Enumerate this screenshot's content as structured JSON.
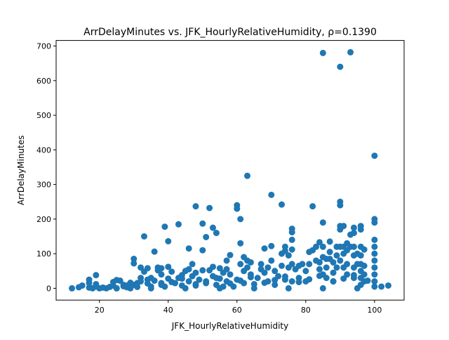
{
  "chart_data": {
    "type": "scatter",
    "title": "ArrDelayMinutes vs. JFK_HourlyRelativeHumidity, ρ=0.1390",
    "xlabel": "JFK_HourlyRelativeHumidity",
    "ylabel": "ArrDelayMinutes",
    "xlim": [
      7.4,
      108.6
    ],
    "ylim": [
      -34.1,
      716.1
    ],
    "xticks": [
      20,
      40,
      60,
      80,
      100
    ],
    "yticks": [
      0,
      100,
      200,
      300,
      400,
      500,
      600,
      700
    ],
    "grid": false,
    "legend": "none",
    "marker_color": "#1f77b4",
    "series": [
      {
        "points": [
          [
            12,
            0
          ],
          [
            14,
            3
          ],
          [
            15,
            8
          ],
          [
            17,
            2
          ],
          [
            17,
            25
          ],
          [
            17,
            15
          ],
          [
            18,
            0
          ],
          [
            19,
            5
          ],
          [
            19,
            12
          ],
          [
            19,
            38
          ],
          [
            20,
            0
          ],
          [
            21,
            2
          ],
          [
            22,
            0
          ],
          [
            23,
            4
          ],
          [
            24,
            8
          ],
          [
            24,
            18
          ],
          [
            25,
            0
          ],
          [
            25,
            24
          ],
          [
            26,
            22
          ],
          [
            27,
            6
          ],
          [
            27,
            10
          ],
          [
            28,
            3
          ],
          [
            29,
            16
          ],
          [
            29,
            0
          ],
          [
            30,
            72
          ],
          [
            30,
            85
          ],
          [
            30,
            10
          ],
          [
            31,
            4
          ],
          [
            32,
            30
          ],
          [
            32,
            20
          ],
          [
            32,
            60
          ],
          [
            33,
            150
          ],
          [
            33,
            48
          ],
          [
            34,
            58
          ],
          [
            34,
            14
          ],
          [
            35,
            5
          ],
          [
            35,
            30
          ],
          [
            36,
            106
          ],
          [
            36,
            22
          ],
          [
            37,
            52
          ],
          [
            37,
            60
          ],
          [
            38,
            58
          ],
          [
            38,
            40
          ],
          [
            38,
            15
          ],
          [
            39,
            178
          ],
          [
            39,
            5
          ],
          [
            40,
            136
          ],
          [
            40,
            62
          ],
          [
            40,
            28
          ],
          [
            41,
            48
          ],
          [
            42,
            15
          ],
          [
            43,
            185
          ],
          [
            43,
            30
          ],
          [
            44,
            38
          ],
          [
            44,
            8
          ],
          [
            45,
            50
          ],
          [
            46,
            115
          ],
          [
            46,
            55
          ],
          [
            46,
            20
          ],
          [
            47,
            70
          ],
          [
            47,
            35
          ],
          [
            48,
            237
          ],
          [
            48,
            8
          ],
          [
            48,
            45
          ],
          [
            49,
            25
          ],
          [
            50,
            187
          ],
          [
            50,
            110
          ],
          [
            50,
            52
          ],
          [
            51,
            148
          ],
          [
            51,
            15
          ],
          [
            52,
            232
          ],
          [
            52,
            52
          ],
          [
            53,
            175
          ],
          [
            53,
            62
          ],
          [
            53,
            35
          ],
          [
            54,
            160
          ],
          [
            54,
            10
          ],
          [
            55,
            58
          ],
          [
            55,
            28
          ],
          [
            56,
            45
          ],
          [
            56,
            5
          ],
          [
            57,
            80
          ],
          [
            57,
            55
          ],
          [
            57,
            20
          ],
          [
            58,
            96
          ],
          [
            58,
            40
          ],
          [
            59,
            5
          ],
          [
            60,
            240
          ],
          [
            60,
            230
          ],
          [
            60,
            25
          ],
          [
            61,
            200
          ],
          [
            61,
            130
          ],
          [
            61,
            70
          ],
          [
            62,
            90
          ],
          [
            62,
            50
          ],
          [
            62,
            15
          ],
          [
            63,
            325
          ],
          [
            63,
            80
          ],
          [
            63,
            60
          ],
          [
            64,
            75
          ],
          [
            64,
            40
          ],
          [
            65,
            12
          ],
          [
            66,
            30
          ],
          [
            67,
            70
          ],
          [
            67,
            55
          ],
          [
            68,
            115
          ],
          [
            68,
            45
          ],
          [
            69,
            60
          ],
          [
            69,
            20
          ],
          [
            70,
            270
          ],
          [
            70,
            122
          ],
          [
            70,
            80
          ],
          [
            71,
            50
          ],
          [
            71,
            10
          ],
          [
            72,
            35
          ],
          [
            73,
            242
          ],
          [
            73,
            100
          ],
          [
            73,
            65
          ],
          [
            74,
            120
          ],
          [
            74,
            108
          ],
          [
            74,
            25
          ],
          [
            75,
            95
          ],
          [
            75,
            60
          ],
          [
            76,
            172
          ],
          [
            76,
            162
          ],
          [
            76,
            140
          ],
          [
            76,
            112
          ],
          [
            76,
            70
          ],
          [
            76,
            20
          ],
          [
            77,
            55
          ],
          [
            78,
            65
          ],
          [
            78,
            30
          ],
          [
            79,
            70
          ],
          [
            80,
            50
          ],
          [
            80,
            20
          ],
          [
            81,
            105
          ],
          [
            81,
            70
          ],
          [
            82,
            237
          ],
          [
            82,
            110
          ],
          [
            83,
            120
          ],
          [
            83,
            80
          ],
          [
            84,
            133
          ],
          [
            84,
            75
          ],
          [
            84,
            55
          ],
          [
            85,
            680
          ],
          [
            85,
            190
          ],
          [
            85,
            120
          ],
          [
            85,
            90
          ],
          [
            85,
            40
          ],
          [
            86,
            85
          ],
          [
            86,
            60
          ],
          [
            86,
            30
          ],
          [
            87,
            135
          ],
          [
            87,
            105
          ],
          [
            87,
            85
          ],
          [
            88,
            75
          ],
          [
            88,
            45
          ],
          [
            88,
            20
          ],
          [
            89,
            120
          ],
          [
            89,
            95
          ],
          [
            89,
            60
          ],
          [
            90,
            640
          ],
          [
            90,
            250
          ],
          [
            90,
            240
          ],
          [
            90,
            180
          ],
          [
            90,
            170
          ],
          [
            90,
            120
          ],
          [
            90,
            80
          ],
          [
            91,
            180
          ],
          [
            91,
            120
          ],
          [
            91,
            100
          ],
          [
            91,
            60
          ],
          [
            92,
            130
          ],
          [
            92,
            110
          ],
          [
            92,
            70
          ],
          [
            92,
            40
          ],
          [
            93,
            682
          ],
          [
            93,
            155
          ],
          [
            93,
            120
          ],
          [
            94,
            175
          ],
          [
            94,
            160
          ],
          [
            94,
            120
          ],
          [
            94,
            95
          ],
          [
            94,
            60
          ],
          [
            94,
            30
          ],
          [
            95,
            100
          ],
          [
            95,
            70
          ],
          [
            96,
            180
          ],
          [
            96,
            170
          ],
          [
            96,
            120
          ],
          [
            96,
            95
          ],
          [
            96,
            70
          ],
          [
            96,
            50
          ],
          [
            96,
            30
          ],
          [
            96,
            10
          ],
          [
            97,
            112
          ],
          [
            97,
            65
          ],
          [
            97,
            40
          ],
          [
            97,
            20
          ],
          [
            100,
            383
          ],
          [
            100,
            200
          ],
          [
            100,
            190
          ],
          [
            100,
            140
          ],
          [
            100,
            120
          ],
          [
            100,
            100
          ],
          [
            100,
            80
          ],
          [
            100,
            60
          ],
          [
            100,
            40
          ],
          [
            100,
            20
          ],
          [
            100,
            5
          ],
          [
            102,
            5
          ],
          [
            104,
            8
          ],
          [
            25,
            0
          ],
          [
            35,
            0
          ],
          [
            45,
            0
          ],
          [
            55,
            0
          ],
          [
            65,
            0
          ],
          [
            75,
            0
          ],
          [
            85,
            0
          ],
          [
            95,
            0
          ],
          [
            28,
            8
          ],
          [
            38,
            10
          ],
          [
            48,
            12
          ],
          [
            58,
            14
          ],
          [
            68,
            16
          ],
          [
            78,
            18
          ],
          [
            88,
            20
          ],
          [
            98,
            22
          ],
          [
            31,
            15
          ],
          [
            41,
            18
          ],
          [
            51,
            20
          ],
          [
            61,
            22
          ],
          [
            71,
            24
          ],
          [
            81,
            26
          ],
          [
            91,
            28
          ],
          [
            34,
            25
          ],
          [
            44,
            28
          ],
          [
            54,
            30
          ],
          [
            64,
            32
          ],
          [
            74,
            34
          ],
          [
            84,
            36
          ],
          [
            94,
            38
          ]
        ]
      }
    ]
  }
}
